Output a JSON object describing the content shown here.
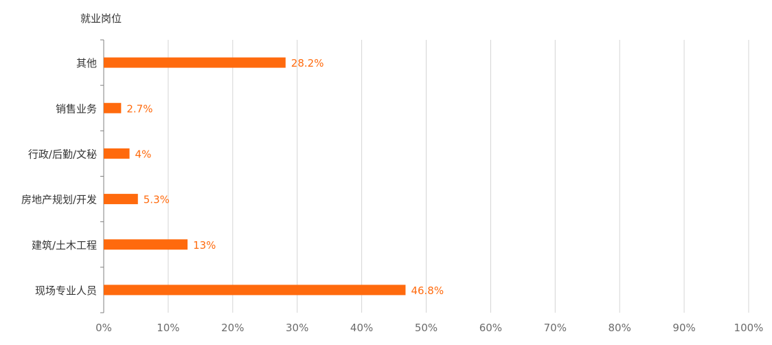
{
  "chart_data": {
    "type": "bar",
    "orientation": "horizontal",
    "title": "",
    "ylabel": "就业岗位",
    "xlabel": "",
    "categories": [
      "其他",
      "销售业务",
      "行政/后勤/文秘",
      "房地产规划/开发",
      "建筑/土木工程",
      "现场专业人员"
    ],
    "values": [
      28.2,
      2.7,
      4,
      5.3,
      13,
      46.8
    ],
    "data_labels": [
      "28.2%",
      "2.7%",
      "4%",
      "5.3%",
      "13%",
      "46.8%"
    ],
    "x_ticks": [
      "0%",
      "10%",
      "20%",
      "30%",
      "40%",
      "50%",
      "60%",
      "70%",
      "80%",
      "90%",
      "100%"
    ],
    "xlim": [
      0,
      100
    ],
    "grid": "vertical",
    "legend": "none",
    "colors": {
      "bar": "#FF6A0D",
      "label": "#FF6A0D",
      "grid": "#D4D4D4",
      "axis": "#7F7F7F"
    }
  }
}
